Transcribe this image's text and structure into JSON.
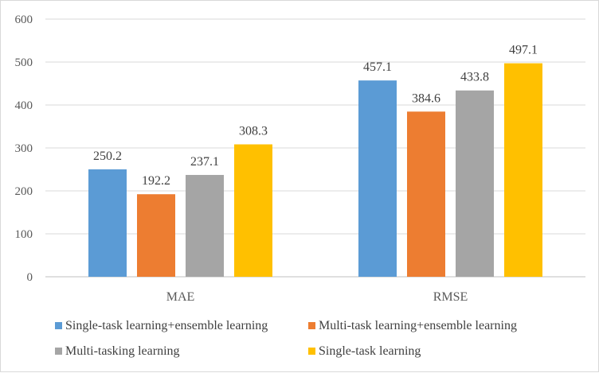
{
  "chart_data": {
    "type": "bar",
    "categories": [
      "MAE",
      "RMSE"
    ],
    "series": [
      {
        "name": "Single-task learning+ensemble learning",
        "color": "#5B9BD5",
        "values": [
          250.2,
          457.1
        ]
      },
      {
        "name": "Multi-task learning+ensemble learning",
        "color": "#ED7D31",
        "values": [
          192.2,
          384.6
        ]
      },
      {
        "name": "Multi-tasking learning",
        "color": "#A5A5A5",
        "values": [
          237.1,
          433.8
        ]
      },
      {
        "name": "Single-task learning",
        "color": "#FFC000",
        "values": [
          308.3,
          497.1
        ]
      }
    ],
    "ylim": [
      0,
      600
    ],
    "yticks": [
      0,
      100,
      200,
      300,
      400,
      500,
      600
    ],
    "grid": true,
    "legend": "bottom",
    "title": "",
    "xlabel": "",
    "ylabel": ""
  }
}
